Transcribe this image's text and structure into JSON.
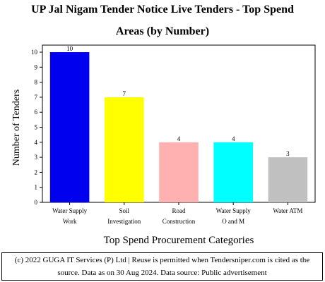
{
  "chart_data": {
    "type": "bar",
    "title_lines": [
      "UP Jal Nigam Tender Notice Live Tenders - Top Spend",
      "Areas (by Number)"
    ],
    "xlabel": "Top Spend Procurement Categories",
    "ylabel": "Number of Tenders",
    "categories": [
      [
        "Water Supply",
        "Work"
      ],
      [
        "Soil",
        "Investigation"
      ],
      [
        "Road",
        "Construction"
      ],
      [
        "Water Supply",
        "O and M"
      ],
      [
        "Water ATM"
      ]
    ],
    "values": [
      10,
      7,
      4,
      4,
      3
    ],
    "colors": [
      "#0000ee",
      "#ffff00",
      "#ffb0b0",
      "#00ffff",
      "#c0c0c0"
    ],
    "ylim": [
      0,
      10
    ],
    "yticks": [
      0,
      1,
      2,
      3,
      4,
      5,
      6,
      7,
      8,
      9,
      10
    ],
    "data_labels": true,
    "legend": "none",
    "grid": false
  },
  "footer": {
    "line1": "(c) 2022 GUGA IT Services (P) Ltd | Reuse is permitted when Tendersniper.com is cited as the",
    "line2": "source. Data as on 30 Aug 2024. Data source: Public advertisement"
  }
}
